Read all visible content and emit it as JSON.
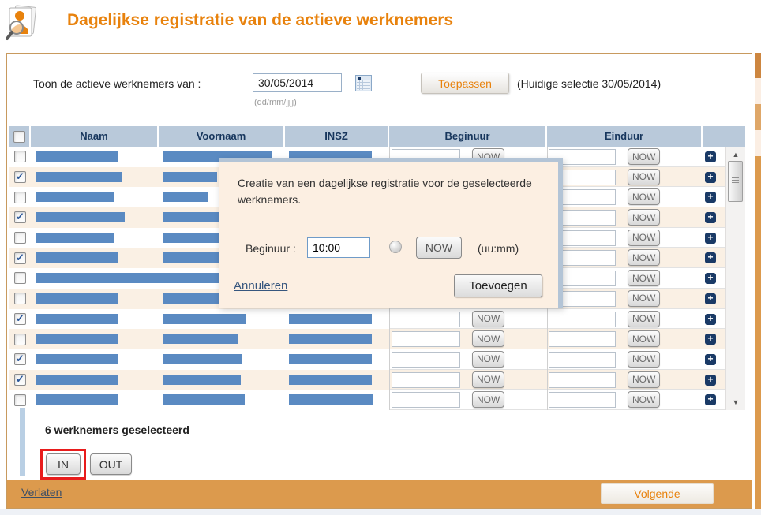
{
  "header": {
    "title": "Dagelijkse registratie van de actieve werknemers"
  },
  "filter": {
    "label": "Toon de actieve werknemers van :",
    "date_value": "30/05/2014",
    "date_format_hint": "(dd/mm/jjjj)",
    "apply_label": "Toepassen",
    "current_selection": "(Huidige selectie 30/05/2014)"
  },
  "table": {
    "columns": {
      "naam": "Naam",
      "voornaam": "Voornaam",
      "insz": "INSZ",
      "beginuur": "Beginuur",
      "einduur": "Einduur"
    },
    "now_label": "NOW",
    "rows": [
      {
        "checked": false,
        "naam_w": 105,
        "voornaam_w": 137,
        "insz_w": 105
      },
      {
        "checked": true,
        "naam_w": 110,
        "voornaam_w": 68,
        "insz_w": 105
      },
      {
        "checked": false,
        "naam_w": 100,
        "voornaam_w": 56,
        "insz_w": 105
      },
      {
        "checked": true,
        "naam_w": 113,
        "voornaam_w": 95,
        "insz_w": 105
      },
      {
        "checked": false,
        "naam_w": 100,
        "voornaam_w": 72,
        "insz_w": 105
      },
      {
        "checked": true,
        "naam_w": 105,
        "voornaam_w": 95,
        "insz_w": 105
      },
      {
        "checked": false,
        "naam_w": 205,
        "voornaam_w": 122,
        "insz_w": 105
      },
      {
        "checked": false,
        "naam_w": 105,
        "voornaam_w": 70,
        "insz_w": 105
      },
      {
        "checked": true,
        "naam_w": 105,
        "voornaam_w": 105,
        "insz_w": 105
      },
      {
        "checked": false,
        "naam_w": 105,
        "voornaam_w": 95,
        "insz_w": 105
      },
      {
        "checked": true,
        "naam_w": 105,
        "voornaam_w": 100,
        "insz_w": 105
      },
      {
        "checked": true,
        "naam_w": 105,
        "voornaam_w": 98,
        "insz_w": 105
      },
      {
        "checked": false,
        "naam_w": 105,
        "voornaam_w": 103,
        "insz_w": 107
      }
    ]
  },
  "selection": {
    "summary": "6 werknemers geselecteerd",
    "in_label": "IN",
    "out_label": "OUT"
  },
  "modal": {
    "message": "Creatie van een dagelijkse registratie voor de geselecteerde werknemers.",
    "beginuur_label": "Beginuur :",
    "beginuur_value": "10:00",
    "now_label": "NOW",
    "format_hint": "(uu:mm)",
    "cancel_label": "Annuleren",
    "submit_label": "Toevoegen"
  },
  "footer": {
    "leave_label": "Verlaten",
    "next_label": "Volgende"
  },
  "icons": {
    "check": "✓",
    "plus": "+",
    "scroll_up": "▲",
    "scroll_down": "▼"
  },
  "colors": {
    "title_orange": "#e8820d",
    "footer_orange": "#dc9a4d",
    "table_header_bg": "#b9c9da",
    "table_header_text": "#17365d",
    "row_alt_bg": "#faf0e4",
    "redaction_bar_blue": "#5a8ac2",
    "plus_icon_navy": "#1a3a66",
    "modal_bg": "#fcefe2",
    "modal_border": "#b3c4d6",
    "annotation_red": "#e81c1c",
    "panel_border": "#c89a5e"
  }
}
